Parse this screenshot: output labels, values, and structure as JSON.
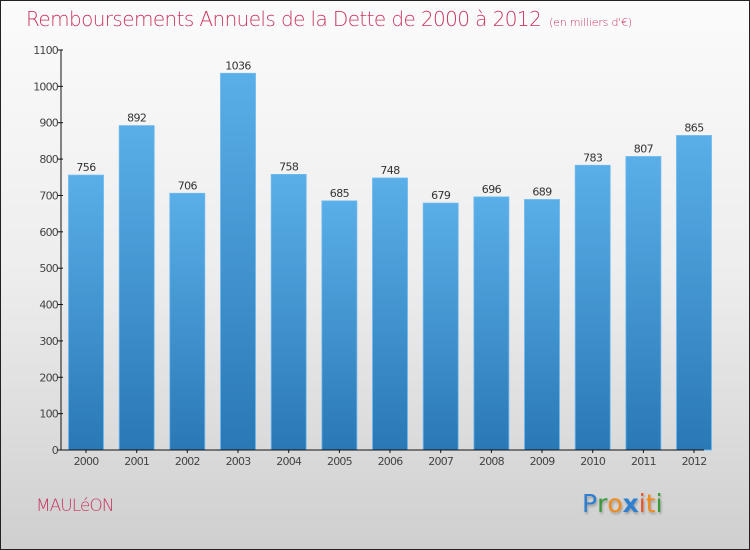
{
  "chart_data": {
    "type": "bar",
    "title": "Remboursements Annuels de la Dette de 2000 à 2012",
    "subtitle": "(en milliers d'€)",
    "xlabel": "",
    "ylabel": "",
    "categories": [
      "2000",
      "2001",
      "2002",
      "2003",
      "2004",
      "2005",
      "2006",
      "2007",
      "2008",
      "2009",
      "2010",
      "2011",
      "2012"
    ],
    "values": [
      756,
      892,
      706,
      1036,
      758,
      685,
      748,
      679,
      696,
      689,
      783,
      807,
      865
    ],
    "ylim": [
      0,
      1100
    ],
    "yticks": [
      0,
      100,
      200,
      300,
      400,
      500,
      600,
      700,
      800,
      900,
      1000,
      1100
    ],
    "grid": false,
    "legend": "none",
    "bar_color": "#4fa3e0"
  },
  "footer": {
    "city": "MAULéON",
    "logo_letters": [
      {
        "ch": "P",
        "color": "#2f7fd0"
      },
      {
        "ch": "r",
        "color": "#3a9a3a"
      },
      {
        "ch": "o",
        "color": "#f08a1c"
      },
      {
        "ch": "x",
        "color": "#2f7fd0"
      },
      {
        "ch": "i",
        "color": "#e8552a"
      },
      {
        "ch": "t",
        "color": "#f08a1c"
      },
      {
        "ch": "i",
        "color": "#3a9a3a"
      }
    ]
  },
  "colors": {
    "title": "#c8365f",
    "bar_top": "#5aafe8",
    "bar_bottom": "#2a78b6"
  }
}
